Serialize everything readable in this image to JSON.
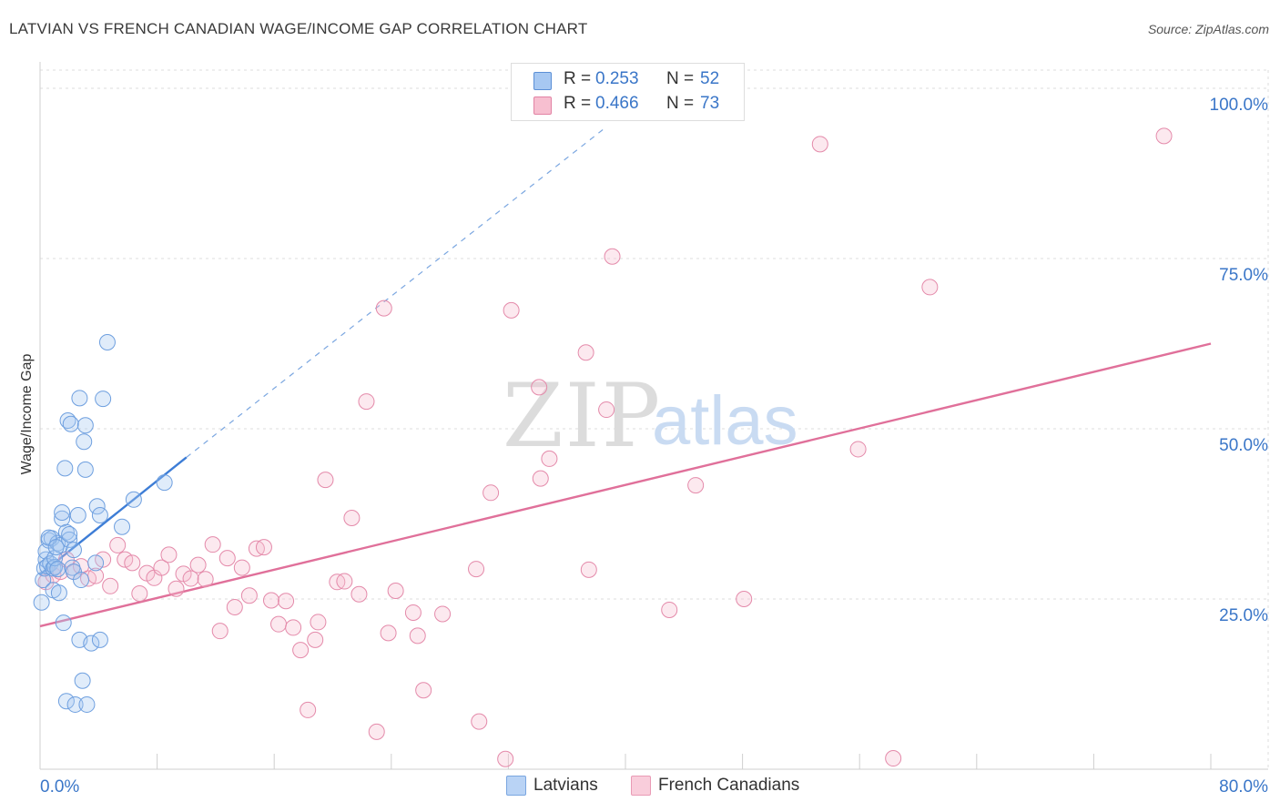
{
  "title": "LATVIAN VS FRENCH CANADIAN WAGE/INCOME GAP CORRELATION CHART",
  "source": "Source: ZipAtlas.com",
  "watermark": {
    "zip": "ZIP",
    "atlas": "atlas"
  },
  "legend": {
    "r_label": "R =",
    "n_label": "N =",
    "series": [
      {
        "r": "0.253",
        "n": "52",
        "color": "#a7c8f2",
        "stroke": "#5b8fd6"
      },
      {
        "r": "0.466",
        "n": "73",
        "color": "#f7bfd0",
        "stroke": "#e283a4"
      }
    ]
  },
  "bottom_legend": [
    "Latvians",
    "French Canadians"
  ],
  "colors": {
    "blue": "#3d7dd6",
    "pink": "#e0709a",
    "axis_text": "#3a76c8",
    "grid": "#dcdcdc"
  },
  "chart_data": {
    "type": "scatter",
    "title": "LATVIAN VS FRENCH CANADIAN WAGE/INCOME GAP CORRELATION CHART",
    "xlabel": "",
    "ylabel": "Wage/Income Gap",
    "xlim": [
      0,
      80
    ],
    "ylim": [
      0,
      100
    ],
    "x_tick_labels": [
      "0.0%",
      "80.0%"
    ],
    "y_ticks": [
      {
        "value": 25,
        "label": "25.0%"
      },
      {
        "value": 50,
        "label": "50.0%"
      },
      {
        "value": 75,
        "label": "75.0%"
      },
      {
        "value": 100,
        "label": "100.0%"
      }
    ],
    "series": [
      {
        "name": "Latvians",
        "r": 0.253,
        "n": 52,
        "points": [
          [
            0.1,
            24.5
          ],
          [
            0.2,
            27.8
          ],
          [
            0.3,
            29.5
          ],
          [
            0.4,
            30.8
          ],
          [
            0.4,
            32.0
          ],
          [
            0.5,
            29.8
          ],
          [
            0.6,
            33.6
          ],
          [
            0.7,
            30.2
          ],
          [
            0.8,
            33.9
          ],
          [
            0.9,
            29.5
          ],
          [
            0.9,
            26.3
          ],
          [
            1.0,
            29.7
          ],
          [
            1.0,
            31.0
          ],
          [
            1.2,
            33.2
          ],
          [
            1.2,
            29.4
          ],
          [
            1.3,
            25.9
          ],
          [
            1.4,
            32.9
          ],
          [
            1.5,
            36.8
          ],
          [
            1.5,
            37.7
          ],
          [
            1.6,
            21.5
          ],
          [
            1.7,
            44.2
          ],
          [
            1.8,
            34.8
          ],
          [
            1.8,
            10.0
          ],
          [
            1.9,
            51.2
          ],
          [
            2.0,
            33.7
          ],
          [
            2.0,
            34.5
          ],
          [
            2.1,
            50.7
          ],
          [
            2.2,
            29.6
          ],
          [
            2.3,
            29.0
          ],
          [
            2.3,
            32.2
          ],
          [
            2.4,
            9.5
          ],
          [
            2.6,
            37.3
          ],
          [
            2.7,
            54.5
          ],
          [
            2.7,
            19.0
          ],
          [
            2.8,
            27.8
          ],
          [
            2.9,
            13.0
          ],
          [
            3.0,
            48.1
          ],
          [
            3.1,
            50.5
          ],
          [
            3.1,
            44.0
          ],
          [
            3.2,
            9.5
          ],
          [
            3.5,
            18.5
          ],
          [
            3.8,
            30.3
          ],
          [
            3.9,
            38.6
          ],
          [
            4.1,
            19.0
          ],
          [
            4.1,
            37.3
          ],
          [
            4.3,
            54.4
          ],
          [
            4.6,
            62.7
          ],
          [
            5.6,
            35.6
          ],
          [
            6.4,
            39.6
          ],
          [
            8.5,
            42.1
          ],
          [
            0.6,
            34.0
          ],
          [
            1.1,
            32.6
          ]
        ],
        "trend": {
          "x0": 0,
          "y0": 28.6,
          "x1": 10.0,
          "y1": 45.8,
          "dashed_to_x": 38.5,
          "dashed_to_y": 94.0
        }
      },
      {
        "name": "French Canadians",
        "r": 0.466,
        "n": 73,
        "points": [
          [
            0.4,
            27.5
          ],
          [
            0.9,
            28.5
          ],
          [
            1.4,
            29.0
          ],
          [
            1.8,
            30.8
          ],
          [
            2.3,
            29.0
          ],
          [
            2.8,
            29.8
          ],
          [
            3.3,
            28.0
          ],
          [
            3.8,
            28.4
          ],
          [
            4.3,
            30.8
          ],
          [
            4.8,
            26.9
          ],
          [
            5.3,
            32.9
          ],
          [
            5.8,
            30.8
          ],
          [
            6.3,
            30.3
          ],
          [
            6.8,
            25.8
          ],
          [
            7.3,
            28.8
          ],
          [
            7.8,
            28.1
          ],
          [
            8.3,
            29.6
          ],
          [
            8.8,
            31.5
          ],
          [
            9.3,
            26.5
          ],
          [
            9.8,
            28.7
          ],
          [
            10.3,
            28.0
          ],
          [
            10.8,
            30.0
          ],
          [
            11.3,
            27.9
          ],
          [
            11.8,
            33.0
          ],
          [
            12.3,
            20.3
          ],
          [
            12.8,
            31.0
          ],
          [
            13.3,
            23.8
          ],
          [
            13.8,
            29.6
          ],
          [
            14.3,
            25.5
          ],
          [
            14.8,
            32.4
          ],
          [
            15.3,
            32.6
          ],
          [
            15.8,
            24.8
          ],
          [
            16.3,
            21.3
          ],
          [
            16.8,
            24.7
          ],
          [
            17.3,
            20.8
          ],
          [
            17.8,
            17.5
          ],
          [
            18.3,
            8.7
          ],
          [
            18.8,
            19.0
          ],
          [
            19.0,
            21.6
          ],
          [
            19.5,
            42.5
          ],
          [
            20.3,
            27.5
          ],
          [
            20.8,
            27.6
          ],
          [
            21.3,
            36.9
          ],
          [
            21.8,
            25.7
          ],
          [
            22.3,
            54.0
          ],
          [
            23.0,
            5.5
          ],
          [
            23.5,
            67.7
          ],
          [
            23.8,
            20.0
          ],
          [
            24.3,
            26.2
          ],
          [
            25.5,
            23.0
          ],
          [
            25.8,
            19.6
          ],
          [
            26.2,
            11.6
          ],
          [
            27.5,
            22.8
          ],
          [
            29.8,
            29.4
          ],
          [
            30.0,
            7.0
          ],
          [
            30.8,
            40.6
          ],
          [
            31.8,
            1.5
          ],
          [
            32.2,
            67.4
          ],
          [
            34.1,
            56.1
          ],
          [
            34.2,
            42.7
          ],
          [
            34.8,
            45.6
          ],
          [
            37.3,
            61.2
          ],
          [
            37.5,
            29.3
          ],
          [
            38.7,
            52.8
          ],
          [
            39.1,
            75.3
          ],
          [
            43.0,
            23.4
          ],
          [
            44.8,
            41.7
          ],
          [
            48.1,
            25.0
          ],
          [
            53.3,
            91.8
          ],
          [
            55.9,
            47.0
          ],
          [
            58.3,
            1.6
          ],
          [
            60.8,
            70.8
          ],
          [
            76.8,
            93.0
          ]
        ],
        "trend": {
          "x0": 0,
          "y0": 21.0,
          "x1": 80,
          "y1": 62.5
        }
      }
    ]
  }
}
